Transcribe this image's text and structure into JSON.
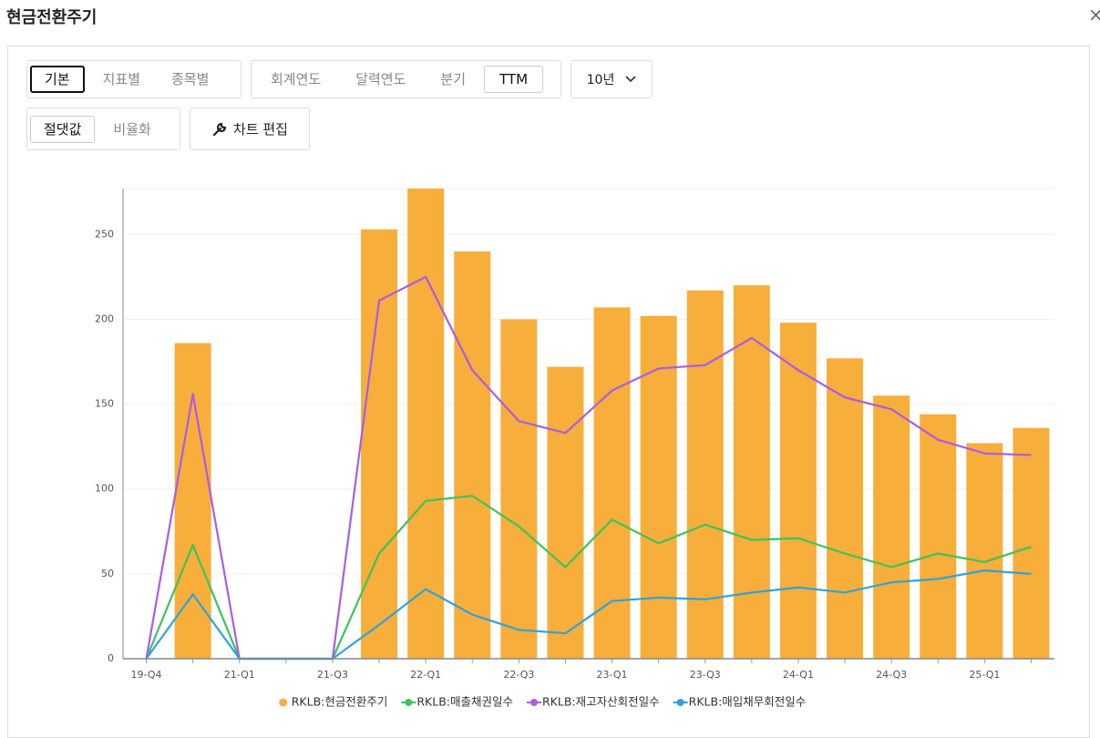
{
  "title": "현금전환주기",
  "close": "×",
  "toolbar": {
    "view": [
      "기본",
      "지표별",
      "종목별"
    ],
    "period": [
      "회계연도",
      "달력연도",
      "분기",
      "TTM"
    ],
    "range": "10년",
    "scale": [
      "절댓값",
      "비율화"
    ],
    "edit": "차트 편집"
  },
  "chart_data": {
    "type": "combo",
    "categories": [
      "19-Q4",
      null,
      "21-Q1",
      null,
      "21-Q3",
      null,
      "22-Q1",
      null,
      "22-Q3",
      null,
      "23-Q1",
      null,
      "23-Q3",
      null,
      "24-Q1",
      null,
      "24-Q3",
      null,
      "25-Q1",
      null
    ],
    "series": [
      {
        "name": "RKLB:현금전환주기",
        "type": "bar",
        "color": "#f7ae3a",
        "values": [
          0,
          186,
          0,
          0,
          0,
          253,
          277,
          240,
          200,
          172,
          207,
          202,
          217,
          220,
          198,
          177,
          155,
          144,
          127,
          136
        ]
      },
      {
        "name": "RKLB:매출채권일수",
        "type": "line",
        "color": "#3cc45c",
        "values": [
          0,
          67,
          0,
          0,
          0,
          62,
          93,
          96,
          78,
          54,
          82,
          68,
          79,
          70,
          71,
          62,
          54,
          62,
          57,
          66
        ]
      },
      {
        "name": "RKLB:재고자산회전일수",
        "type": "line",
        "color": "#a85de8",
        "values": [
          0,
          156,
          0,
          0,
          0,
          211,
          225,
          170,
          140,
          133,
          158,
          171,
          173,
          189,
          170,
          154,
          147,
          129,
          121,
          120
        ]
      },
      {
        "name": "RKLB:매입채무회전일수",
        "type": "line",
        "color": "#2ea3dd",
        "values": [
          0,
          38,
          0,
          0,
          0,
          20,
          41,
          26,
          17,
          15,
          34,
          36,
          35,
          39,
          42,
          39,
          45,
          47,
          52,
          50
        ]
      }
    ],
    "ylim": [
      0,
      277
    ],
    "yticks": [
      0,
      50,
      100,
      150,
      200,
      250
    ],
    "grid": true
  }
}
